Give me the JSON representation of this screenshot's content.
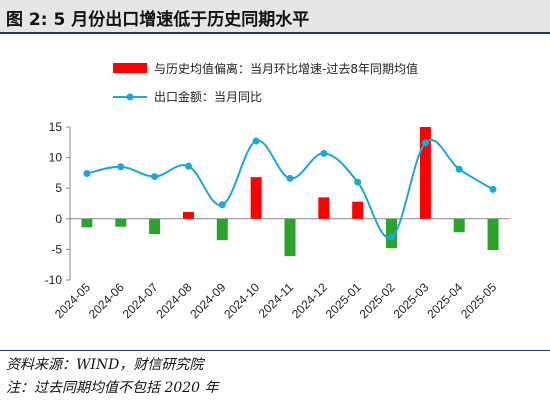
{
  "title": "图 2:  5 月份出口增速低于历史同期水平",
  "source_note": "资料来源：WIND，财信研究院",
  "footnote": "注：过去同期均值不包括 2020 年",
  "chart_data": {
    "type": "bar+line",
    "categories": [
      "2024-05",
      "2024-06",
      "2024-07",
      "2024-08",
      "2024-09",
      "2024-10",
      "2024-11",
      "2024-12",
      "2025-01",
      "2025-02",
      "2025-03",
      "2025-04",
      "2025-05"
    ],
    "ylim": [
      -10,
      15
    ],
    "yticks": [
      -10,
      -5,
      0,
      5,
      10,
      15
    ],
    "grid": false,
    "legend_position": "top",
    "series": [
      {
        "name": "与历史均值偏离：当月环比增速-过去8年同期均值",
        "type": "bar",
        "values": [
          -1.4,
          -1.3,
          -2.5,
          1.1,
          -3.5,
          6.8,
          -6.1,
          3.5,
          2.8,
          -4.8,
          15.0,
          -2.2,
          -5.1
        ]
      },
      {
        "name": "出口金额：当月同比",
        "type": "line",
        "values": [
          7.4,
          8.5,
          6.9,
          8.6,
          2.3,
          12.7,
          6.6,
          10.7,
          6.0,
          -3.0,
          12.4,
          8.1,
          4.8
        ]
      }
    ],
    "colors": {
      "positive_bar": "#ff0000",
      "negative_bar": "#2aa52a",
      "line": "#1ea6d8"
    }
  }
}
